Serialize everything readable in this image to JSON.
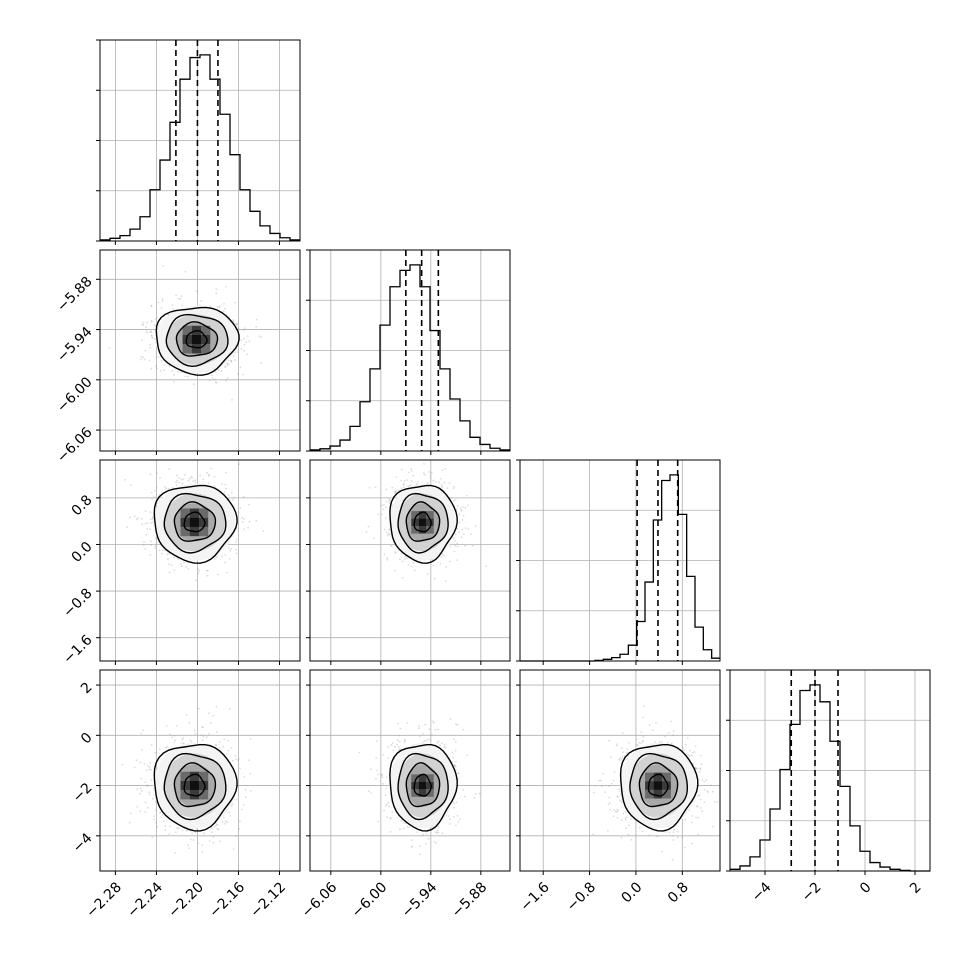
{
  "chart_data": {
    "type": "corner",
    "n_params": 4,
    "x_ticks": [
      {
        "values": [
          -2.28,
          -2.24,
          -2.2,
          -2.16,
          -2.12
        ],
        "labels": [
          "−2.28",
          "−2.24",
          "−2.20",
          "−2.16",
          "−2.12"
        ]
      },
      {
        "values": [
          -6.06,
          -6.0,
          -5.94,
          -5.88
        ],
        "labels": [
          "−6.06",
          "−6.00",
          "−5.94",
          "−5.88"
        ]
      },
      {
        "values": [
          -1.6,
          -0.8,
          0.0,
          0.8
        ],
        "labels": [
          "−1.6",
          "−0.8",
          "0.0",
          "0.8"
        ]
      },
      {
        "values": [
          -4,
          -2,
          0,
          2
        ],
        "labels": [
          "−4",
          "−2",
          "0",
          "2"
        ]
      }
    ],
    "y_ticks": [
      null,
      {
        "values": [
          -5.88,
          -5.94,
          -6.0,
          -6.06
        ],
        "labels": [
          "−5.88",
          "−5.94",
          "−6.00",
          "−6.06"
        ]
      },
      {
        "values": [
          0.8,
          0.0,
          -0.8,
          -1.6
        ],
        "labels": [
          "0.8",
          "0.0",
          "−0.8",
          "−1.6"
        ]
      },
      {
        "values": [
          2,
          0,
          -2,
          -4
        ],
        "labels": [
          "2",
          "0",
          "−2",
          "−4"
        ]
      }
    ],
    "ranges": [
      [
        -2.295,
        -2.1
      ],
      [
        -6.085,
        -5.845
      ],
      [
        -2.0,
        1.45
      ],
      [
        -5.4,
        2.6
      ]
    ],
    "medians": [
      -2.2,
      -5.951,
      0.38,
      -2.0
    ],
    "quantiles": [
      [
        -2.221,
        -2.2,
        -2.18
      ],
      [
        -5.97,
        -5.951,
        -5.931
      ],
      [
        0.02,
        0.38,
        0.72
      ],
      [
        -2.95,
        -2.0,
        -1.08
      ]
    ],
    "stds": [
      0.02,
      0.02,
      0.33,
      0.85
    ],
    "histograms": [
      {
        "param": 0,
        "counts": [
          2,
          5,
          10,
          22,
          45,
          95,
          150,
          220,
          300,
          340,
          345,
          300,
          235,
          160,
          95,
          55,
          28,
          14,
          6,
          2
        ]
      },
      {
        "param": 1,
        "counts": [
          2,
          4,
          9,
          20,
          45,
          90,
          150,
          230,
          300,
          330,
          340,
          300,
          220,
          150,
          95,
          55,
          25,
          12,
          5,
          2
        ]
      },
      {
        "param": 2,
        "counts": [
          0,
          0,
          0,
          0,
          0,
          0,
          0,
          0,
          0,
          1,
          3,
          6,
          12,
          28,
          70,
          140,
          250,
          320,
          330,
          260,
          150,
          60,
          20,
          5
        ]
      },
      {
        "param": 3,
        "counts": [
          3,
          9,
          25,
          55,
          110,
          180,
          260,
          320,
          330,
          300,
          230,
          150,
          80,
          35,
          15,
          7,
          3,
          1,
          0,
          0
        ]
      }
    ],
    "pairs": [
      {
        "x": 0,
        "y": 1,
        "x_center": -2.201,
        "y_center": -5.952
      },
      {
        "x": 0,
        "y": 2,
        "x_center": -2.203,
        "y_center": 0.38
      },
      {
        "x": 1,
        "y": 2,
        "x_center": -5.95,
        "y_center": 0.38
      },
      {
        "x": 0,
        "y": 3,
        "x_center": -2.203,
        "y_center": -2.0
      },
      {
        "x": 1,
        "y": 3,
        "x_center": -5.95,
        "y_center": -2.0
      },
      {
        "x": 2,
        "y": 3,
        "x_center": 0.38,
        "y_center": -2.0
      }
    ],
    "contour_levels_sigma": [
      0.5,
      1.0,
      1.5,
      2.0
    ],
    "grid": true,
    "line_color": "#000000",
    "grid_color": "#b0b0b0",
    "point_color": "#9a9a9a"
  }
}
